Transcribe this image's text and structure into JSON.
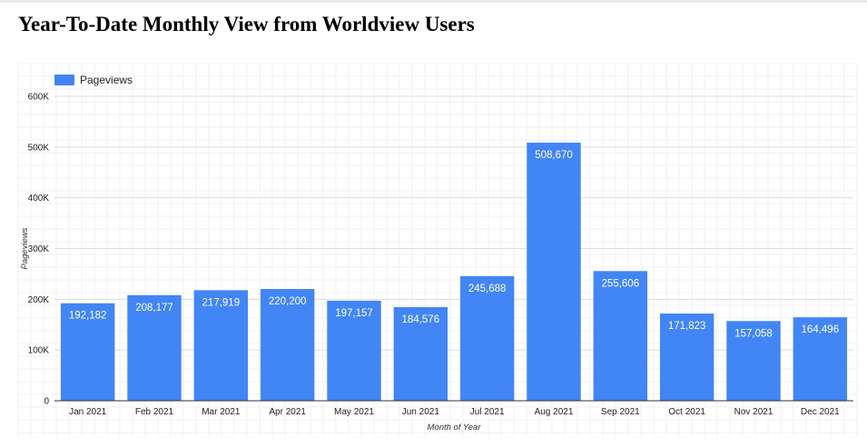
{
  "page": {
    "title": "Year-To-Date Monthly View from Worldview Users"
  },
  "chart_data": {
    "type": "bar",
    "title": "",
    "xlabel": "Month of Year",
    "ylabel": "Pageviews",
    "categories": [
      "Jan 2021",
      "Feb 2021",
      "Mar 2021",
      "Apr 2021",
      "May 2021",
      "Jun 2021",
      "Jul 2021",
      "Aug 2021",
      "Sep 2021",
      "Oct 2021",
      "Nov 2021",
      "Dec 2021"
    ],
    "series": [
      {
        "name": "Pageviews",
        "color": "#4285f4",
        "values": [
          192182,
          208177,
          217919,
          220200,
          197157,
          184576,
          245688,
          508670,
          255606,
          171823,
          157058,
          164496
        ],
        "data_labels": [
          "192,182",
          "208,177",
          "217,919",
          "220,200",
          "197,157",
          "184,576",
          "245,688",
          "508,670",
          "255,606",
          "171,823",
          "157,058",
          "164,496"
        ]
      }
    ],
    "ylim": [
      0,
      600000
    ],
    "y_ticks": [
      0,
      100000,
      200000,
      300000,
      400000,
      500000,
      600000
    ],
    "y_tick_labels": [
      "0",
      "100K",
      "200K",
      "300K",
      "400K",
      "500K",
      "600K"
    ],
    "legend_position": "top-left",
    "grid": true
  }
}
